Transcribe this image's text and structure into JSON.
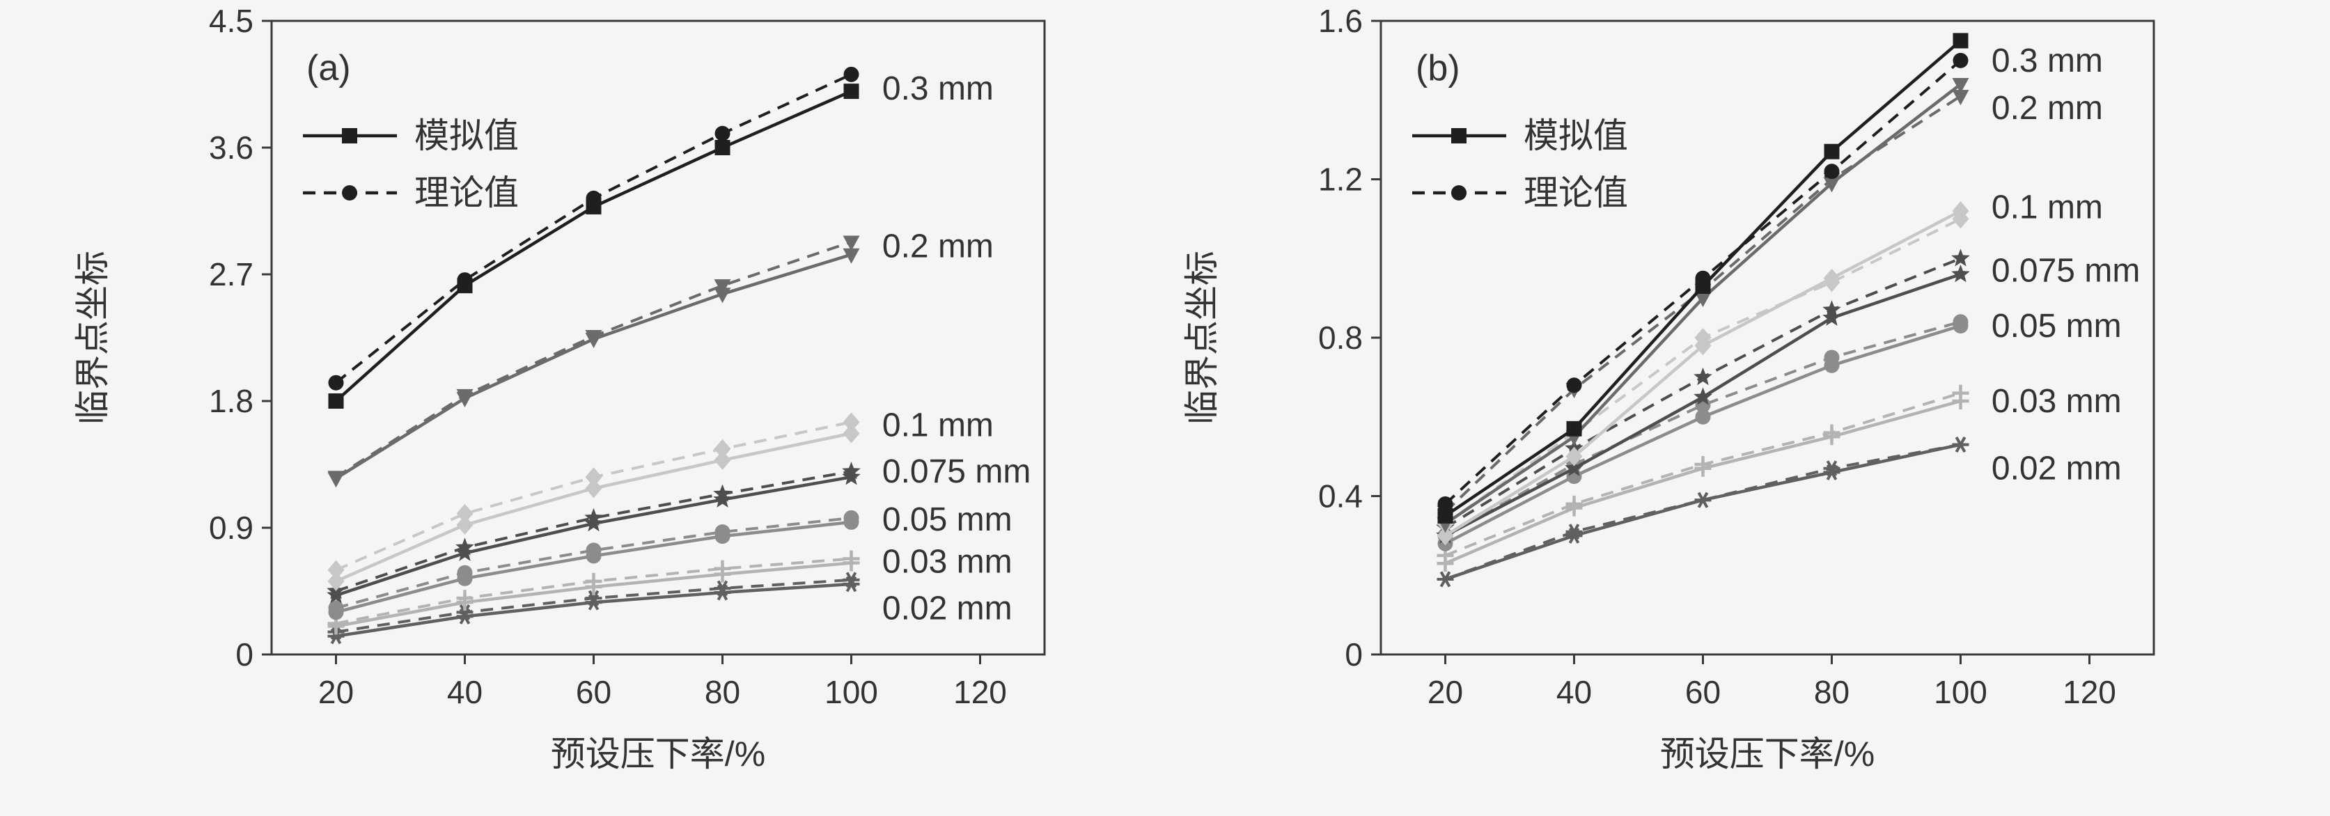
{
  "page": {
    "background": "#f5f5f3",
    "axis_color": "#3a3a3a",
    "text_color": "#333333"
  },
  "chart_data": [
    {
      "type": "line",
      "panel_label": "(a)",
      "xlabel": "预设压下率/%",
      "ylabel": "临界点坐标",
      "x": [
        20,
        40,
        60,
        80,
        100
      ],
      "xticks": [
        20,
        40,
        60,
        80,
        100,
        120
      ],
      "xtick_labels": [
        "20",
        "40",
        "60",
        "80",
        "100",
        "120"
      ],
      "yticks": [
        0,
        0.9,
        1.8,
        2.7,
        3.6,
        4.5
      ],
      "ytick_labels": [
        "0",
        "0.9",
        "1.8",
        "2.7",
        "3.6",
        "4.5"
      ],
      "xlim": [
        10,
        130
      ],
      "ylim": [
        0,
        4.5
      ],
      "grid": false,
      "legend_position": "upper-left",
      "legend": [
        {
          "label": "模拟值",
          "style": "solid",
          "marker": "square"
        },
        {
          "label": "理论值",
          "style": "dashed",
          "marker": "circle"
        }
      ],
      "label_x": 103.5,
      "groups": [
        {
          "label": "0.3 mm",
          "color": "#1f1f1f",
          "marker": "square",
          "marker_theo": "circle",
          "label_y": 4.02,
          "simulated": [
            1.8,
            2.62,
            3.18,
            3.6,
            4.0
          ],
          "theoretical": [
            1.93,
            2.66,
            3.24,
            3.7,
            4.12
          ]
        },
        {
          "label": "0.2 mm",
          "color": "#6b6b6b",
          "marker": "triangle-down",
          "marker_theo": "triangle-down",
          "label_y": 2.9,
          "simulated": [
            1.25,
            1.82,
            2.24,
            2.56,
            2.84
          ],
          "theoretical": [
            1.26,
            1.84,
            2.26,
            2.62,
            2.93
          ]
        },
        {
          "label": "0.1 mm",
          "color": "#c7c7c7",
          "marker": "diamond",
          "marker_theo": "diamond",
          "label_y": 1.63,
          "simulated": [
            0.52,
            0.92,
            1.18,
            1.38,
            1.57
          ],
          "theoretical": [
            0.6,
            1.0,
            1.26,
            1.46,
            1.65
          ]
        },
        {
          "label": "0.075 mm",
          "color": "#4e4e4e",
          "marker": "star",
          "marker_theo": "star",
          "label_y": 1.3,
          "simulated": [
            0.42,
            0.72,
            0.93,
            1.1,
            1.26
          ],
          "theoretical": [
            0.45,
            0.76,
            0.97,
            1.14,
            1.3
          ]
        },
        {
          "label": "0.05 mm",
          "color": "#8c8c8c",
          "marker": "circle",
          "marker_theo": "circle",
          "label_y": 0.96,
          "simulated": [
            0.3,
            0.54,
            0.7,
            0.84,
            0.94
          ],
          "theoretical": [
            0.33,
            0.58,
            0.74,
            0.87,
            0.97
          ]
        },
        {
          "label": "0.03 mm",
          "color": "#b3b3b3",
          "marker": "plus",
          "marker_theo": "plus",
          "label_y": 0.66,
          "simulated": [
            0.2,
            0.37,
            0.48,
            0.57,
            0.65
          ],
          "theoretical": [
            0.22,
            0.4,
            0.52,
            0.61,
            0.68
          ]
        },
        {
          "label": "0.02 mm",
          "color": "#606060",
          "marker": "asterisk",
          "marker_theo": "asterisk",
          "label_y": 0.33,
          "simulated": [
            0.13,
            0.27,
            0.37,
            0.44,
            0.5
          ],
          "theoretical": [
            0.16,
            0.3,
            0.4,
            0.47,
            0.53
          ]
        }
      ]
    },
    {
      "type": "line",
      "panel_label": "(b)",
      "xlabel": "预设压下率/%",
      "ylabel": "临界点坐标",
      "x": [
        20,
        40,
        60,
        80,
        100
      ],
      "xticks": [
        20,
        40,
        60,
        80,
        100,
        120
      ],
      "xtick_labels": [
        "20",
        "40",
        "60",
        "80",
        "100",
        "120"
      ],
      "yticks": [
        0,
        0.4,
        0.8,
        1.2,
        1.6
      ],
      "ytick_labels": [
        "0",
        "0.4",
        "0.8",
        "1.2",
        "1.6"
      ],
      "xlim": [
        10,
        130
      ],
      "ylim": [
        0,
        1.6
      ],
      "grid": false,
      "legend_position": "upper-left",
      "legend": [
        {
          "label": "模拟值",
          "style": "solid",
          "marker": "square"
        },
        {
          "label": "理论值",
          "style": "dashed",
          "marker": "circle"
        }
      ],
      "label_x": 103.5,
      "groups": [
        {
          "label": "0.3 mm",
          "color": "#1f1f1f",
          "marker": "square",
          "marker_theo": "circle",
          "label_y": 1.5,
          "simulated": [
            0.35,
            0.57,
            0.93,
            1.27,
            1.55
          ],
          "theoretical": [
            0.38,
            0.68,
            0.95,
            1.22,
            1.5
          ]
        },
        {
          "label": "0.2 mm",
          "color": "#6b6b6b",
          "marker": "triangle-down",
          "marker_theo": "triangle-down",
          "label_y": 1.38,
          "simulated": [
            0.33,
            0.55,
            0.9,
            1.19,
            1.44
          ],
          "theoretical": [
            0.36,
            0.67,
            0.92,
            1.2,
            1.41
          ]
        },
        {
          "label": "0.1 mm",
          "color": "#c7c7c7",
          "marker": "diamond",
          "marker_theo": "diamond",
          "label_y": 1.13,
          "simulated": [
            0.3,
            0.5,
            0.78,
            0.95,
            1.12
          ],
          "theoretical": [
            0.33,
            0.56,
            0.8,
            0.94,
            1.1
          ]
        },
        {
          "label": "0.075 mm",
          "color": "#4e4e4e",
          "marker": "star",
          "marker_theo": "star",
          "label_y": 0.97,
          "simulated": [
            0.3,
            0.47,
            0.65,
            0.85,
            0.96
          ],
          "theoretical": [
            0.32,
            0.52,
            0.7,
            0.87,
            1.0
          ]
        },
        {
          "label": "0.05 mm",
          "color": "#8c8c8c",
          "marker": "circle",
          "marker_theo": "circle",
          "label_y": 0.83,
          "simulated": [
            0.28,
            0.45,
            0.6,
            0.73,
            0.83
          ],
          "theoretical": [
            0.3,
            0.48,
            0.63,
            0.75,
            0.84
          ]
        },
        {
          "label": "0.03 mm",
          "color": "#b3b3b3",
          "marker": "plus",
          "marker_theo": "plus",
          "label_y": 0.64,
          "simulated": [
            0.23,
            0.37,
            0.47,
            0.55,
            0.64
          ],
          "theoretical": [
            0.25,
            0.38,
            0.48,
            0.56,
            0.66
          ]
        },
        {
          "label": "0.02 mm",
          "color": "#606060",
          "marker": "asterisk",
          "marker_theo": "asterisk",
          "label_y": 0.47,
          "simulated": [
            0.19,
            0.3,
            0.39,
            0.46,
            0.53
          ],
          "theoretical": [
            0.19,
            0.31,
            0.39,
            0.47,
            0.53
          ]
        }
      ]
    }
  ]
}
